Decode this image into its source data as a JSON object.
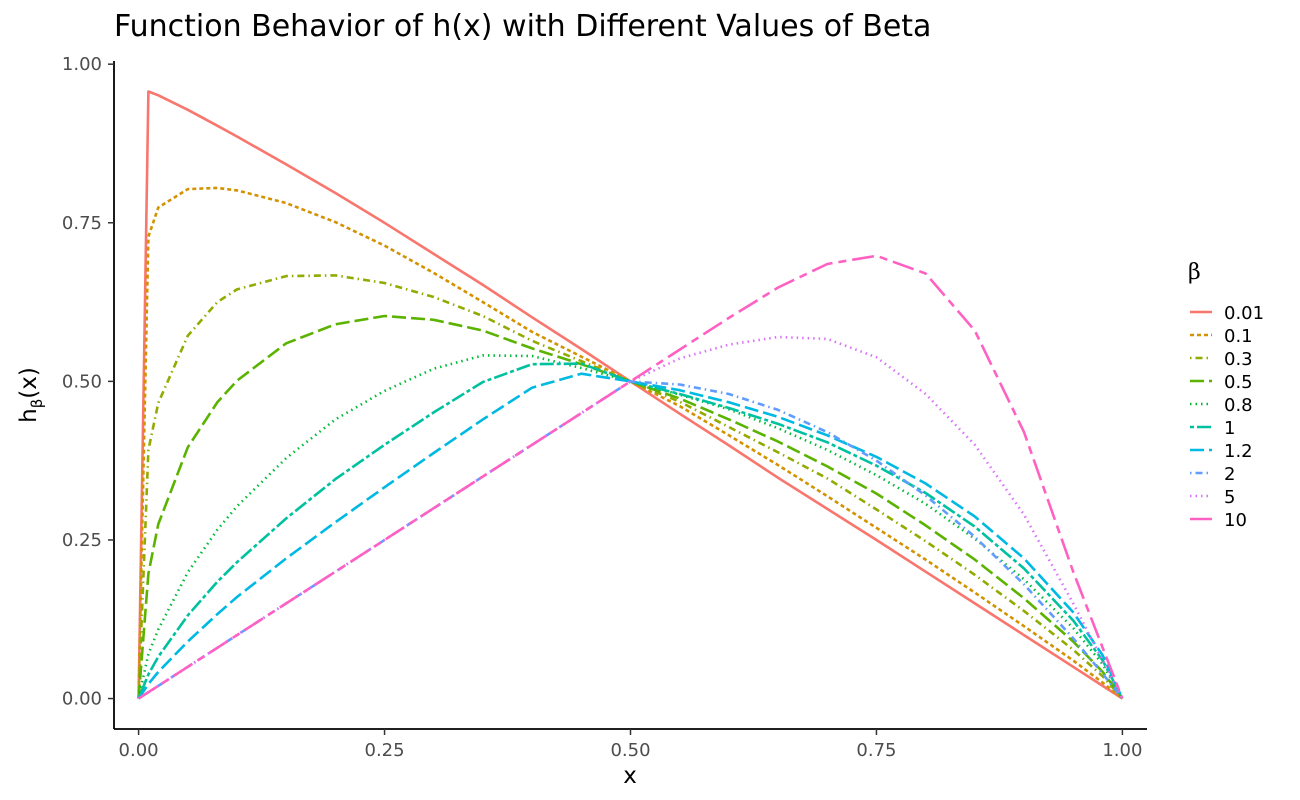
{
  "chart_data": {
    "type": "line",
    "title": "Function Behavior of h(x) with Different Values of Beta",
    "xlabel": "x",
    "ylabel": {
      "base": "h",
      "subscript": "β",
      "suffix": "(x)"
    },
    "xlim": [
      -0.025,
      1.025
    ],
    "ylim": [
      -0.048,
      1.005
    ],
    "x_ticks": [
      0,
      0.25,
      0.5,
      0.75,
      1
    ],
    "x_tick_labels": [
      "0.00",
      "0.25",
      "0.50",
      "0.75",
      "1.00"
    ],
    "y_ticks": [
      0,
      0.25,
      0.5,
      0.75,
      1
    ],
    "y_tick_labels": [
      "0.00",
      "0.25",
      "0.50",
      "0.75",
      "1.00"
    ],
    "grid": false,
    "legend": {
      "title": "β",
      "position": "right"
    },
    "x": [
      0,
      0.01,
      0.02,
      0.05,
      0.08,
      0.1,
      0.15,
      0.2,
      0.25,
      0.3,
      0.35,
      0.4,
      0.45,
      0.5,
      0.55,
      0.6,
      0.65,
      0.7,
      0.75,
      0.8,
      0.85,
      0.9,
      0.95,
      0.98,
      1
    ],
    "series": [
      {
        "name": "0.01",
        "color": "#F8766D",
        "dash": "solid",
        "values": [
          0,
          0.957,
          0.951,
          0.928,
          0.903,
          0.886,
          0.842,
          0.797,
          0.75,
          0.701,
          0.652,
          0.601,
          0.551,
          0.5,
          0.449,
          0.399,
          0.348,
          0.299,
          0.25,
          0.2,
          0.15,
          0.1,
          0.05,
          0.02,
          0
        ]
      },
      {
        "name": "0.1",
        "color": "#D39200",
        "dash": "dashed",
        "values": [
          0,
          0.728,
          0.774,
          0.803,
          0.805,
          0.801,
          0.781,
          0.751,
          0.714,
          0.671,
          0.625,
          0.578,
          0.539,
          0.5,
          0.461,
          0.415,
          0.368,
          0.319,
          0.269,
          0.219,
          0.167,
          0.114,
          0.06,
          0.025,
          0
        ]
      },
      {
        "name": "0.3",
        "color": "#93AA00",
        "dash": "dotdash",
        "values": [
          0,
          0.392,
          0.466,
          0.572,
          0.625,
          0.645,
          0.666,
          0.667,
          0.655,
          0.633,
          0.603,
          0.564,
          0.532,
          0.5,
          0.468,
          0.428,
          0.388,
          0.347,
          0.298,
          0.248,
          0.195,
          0.138,
          0.077,
          0.035,
          0
        ]
      },
      {
        "name": "0.5",
        "color": "#5BB300",
        "dash": "longdash",
        "values": [
          0,
          0.197,
          0.275,
          0.396,
          0.467,
          0.501,
          0.56,
          0.59,
          0.603,
          0.597,
          0.58,
          0.552,
          0.527,
          0.5,
          0.473,
          0.44,
          0.405,
          0.366,
          0.323,
          0.273,
          0.219,
          0.158,
          0.09,
          0.042,
          0
        ]
      },
      {
        "name": "0.8",
        "color": "#00BA38",
        "dash": "dotted",
        "values": [
          0,
          0.07,
          0.109,
          0.199,
          0.266,
          0.303,
          0.379,
          0.44,
          0.485,
          0.52,
          0.541,
          0.54,
          0.521,
          0.5,
          0.479,
          0.456,
          0.426,
          0.392,
          0.352,
          0.307,
          0.252,
          0.188,
          0.111,
          0.054,
          0
        ]
      },
      {
        "name": "1",
        "color": "#00C19F",
        "dash": "twodash",
        "values": [
          0,
          0.038,
          0.066,
          0.131,
          0.184,
          0.215,
          0.284,
          0.346,
          0.4,
          0.451,
          0.499,
          0.527,
          0.528,
          0.5,
          0.48,
          0.458,
          0.433,
          0.404,
          0.367,
          0.324,
          0.271,
          0.205,
          0.123,
          0.06,
          0
        ]
      },
      {
        "name": "1.2",
        "color": "#00B9E3",
        "dash": "longdash",
        "values": [
          0,
          0.023,
          0.042,
          0.09,
          0.133,
          0.16,
          0.221,
          0.278,
          0.333,
          0.387,
          0.44,
          0.49,
          0.512,
          0.5,
          0.486,
          0.467,
          0.444,
          0.415,
          0.381,
          0.339,
          0.287,
          0.221,
          0.136,
          0.068,
          0
        ]
      },
      {
        "name": "2",
        "color": "#619CFF",
        "dash": "dotdash",
        "values": [
          0,
          0.01,
          0.02,
          0.05,
          0.08,
          0.1,
          0.15,
          0.2,
          0.25,
          0.3,
          0.35,
          0.4,
          0.45,
          0.5,
          0.495,
          0.48,
          0.455,
          0.42,
          0.375,
          0.32,
          0.255,
          0.18,
          0.095,
          0.039,
          0
        ]
      },
      {
        "name": "5",
        "color": "#DB72FB",
        "dash": "dotted",
        "values": [
          0,
          0.01,
          0.02,
          0.05,
          0.08,
          0.1,
          0.15,
          0.2,
          0.25,
          0.3,
          0.35,
          0.4,
          0.45,
          0.5,
          0.536,
          0.558,
          0.57,
          0.567,
          0.538,
          0.48,
          0.4,
          0.29,
          0.15,
          0.06,
          0
        ]
      },
      {
        "name": "10",
        "color": "#FF61C3",
        "dash": "dash-longdash",
        "values": [
          0,
          0.01,
          0.02,
          0.05,
          0.08,
          0.1,
          0.15,
          0.2,
          0.25,
          0.3,
          0.35,
          0.4,
          0.45,
          0.5,
          0.55,
          0.6,
          0.648,
          0.685,
          0.698,
          0.67,
          0.58,
          0.42,
          0.2,
          0.08,
          0
        ]
      }
    ]
  }
}
